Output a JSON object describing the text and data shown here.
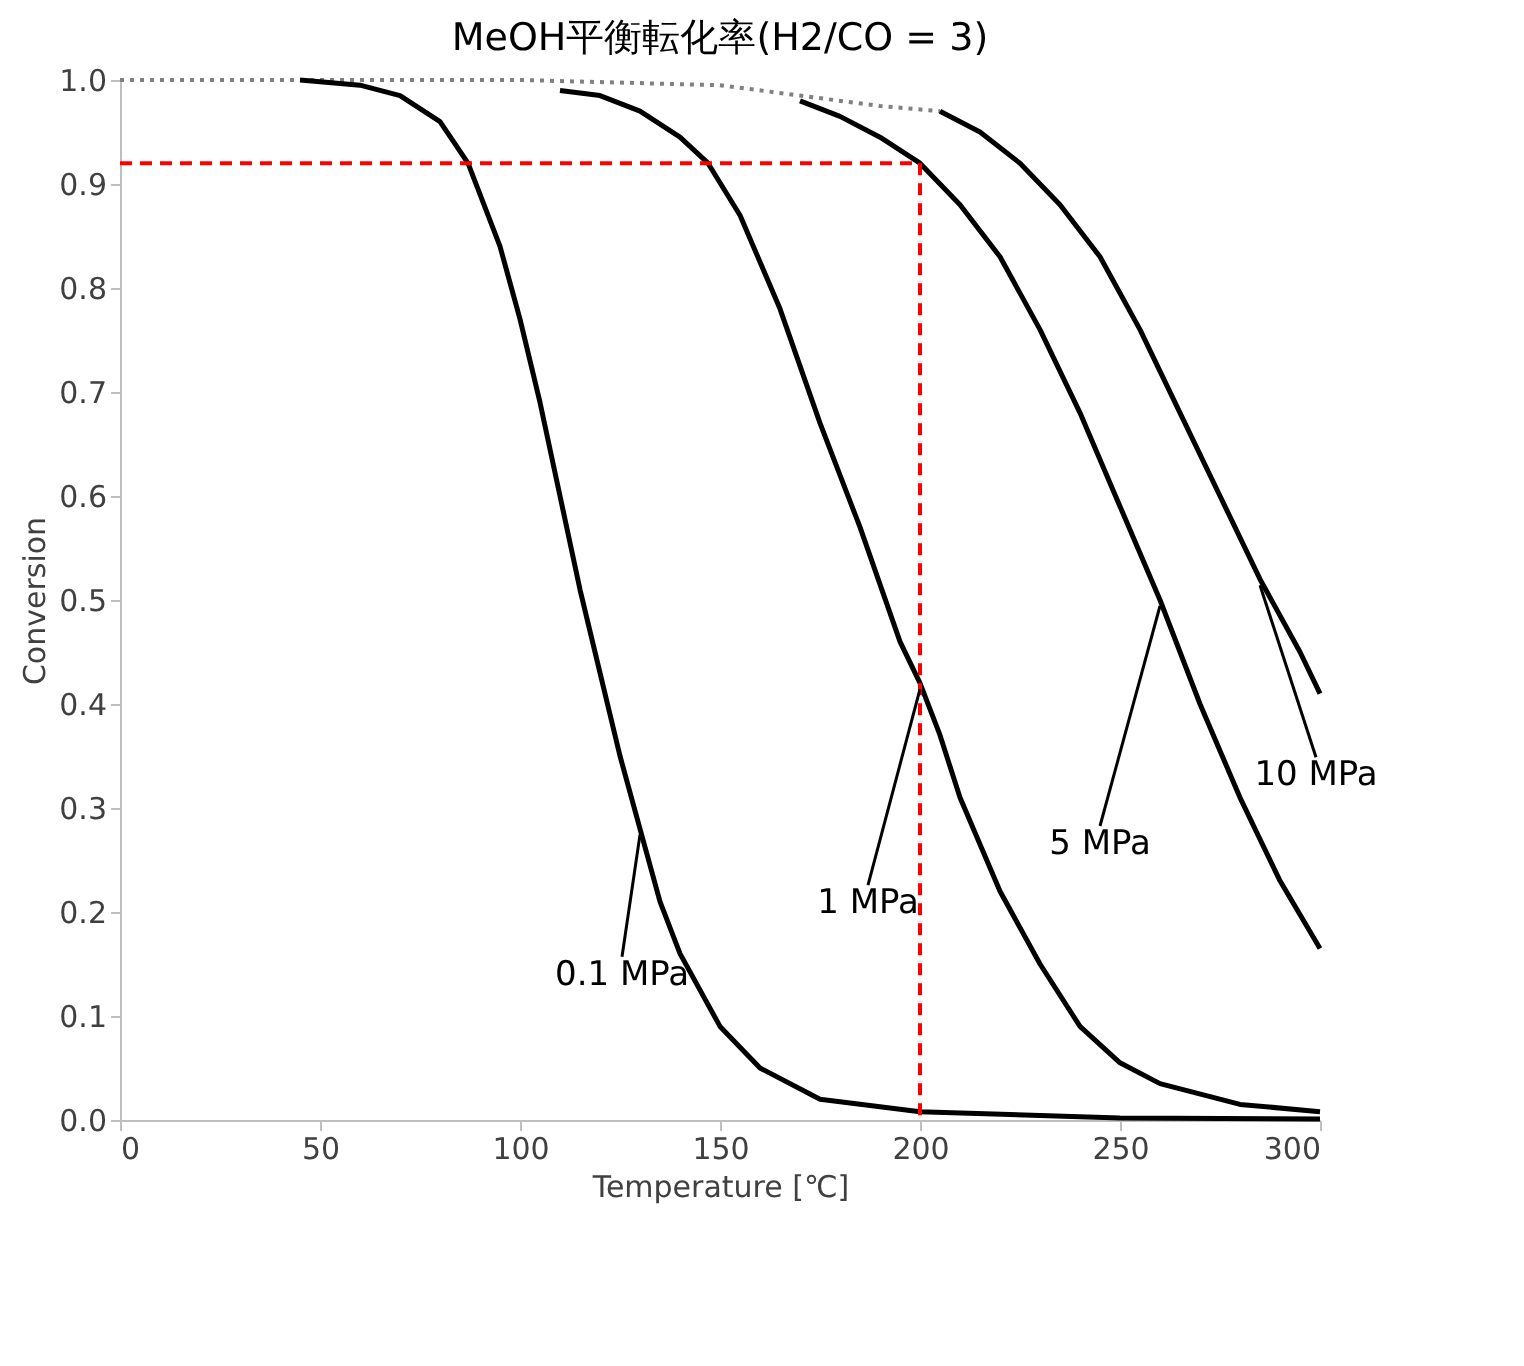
{
  "chart_data": {
    "type": "line",
    "title": "MeOH平衡転化率(H2/CO = 3)",
    "xlabel": "Temperature [℃]",
    "ylabel": "Conversion",
    "xlim": [
      0,
      300
    ],
    "xticks": [
      0,
      50,
      100,
      150,
      200,
      250,
      300
    ],
    "ylim": [
      0,
      1
    ],
    "yticks": [
      {
        "value": 0,
        "label": "0.0"
      },
      0.1,
      0.2,
      0.3,
      0.4,
      0.5,
      0.6,
      0.7,
      0.8,
      0.9,
      {
        "value": 1,
        "label": "1.0"
      }
    ],
    "grid": false,
    "marker": "none",
    "series": [
      {
        "color": "#808080",
        "line_style": "dotted",
        "x": [
          0,
          50,
          100,
          150,
          170,
          190,
          205
        ],
        "values": [
          1.0,
          1.0,
          1.0,
          0.995,
          0.985,
          0.975,
          0.97
        ]
      },
      {
        "color": "#000000",
        "line_style": "solid",
        "x": [
          45,
          60,
          70,
          80,
          87,
          95,
          100,
          105,
          110,
          115,
          120,
          125,
          130,
          135,
          140,
          150,
          160,
          175,
          200,
          250,
          300
        ],
        "values": [
          1.0,
          0.995,
          0.985,
          0.96,
          0.92,
          0.84,
          0.77,
          0.69,
          0.6,
          0.51,
          0.43,
          0.35,
          0.28,
          0.21,
          0.16,
          0.09,
          0.05,
          0.02,
          0.008,
          0.002,
          0.001
        ]
      },
      {
        "color": "#000000",
        "line_style": "solid",
        "x": [
          110,
          120,
          130,
          140,
          147,
          155,
          165,
          175,
          185,
          195,
          200,
          205,
          210,
          220,
          230,
          240,
          250,
          260,
          280,
          300
        ],
        "values": [
          0.99,
          0.985,
          0.97,
          0.945,
          0.92,
          0.87,
          0.78,
          0.67,
          0.57,
          0.46,
          0.42,
          0.37,
          0.31,
          0.22,
          0.15,
          0.09,
          0.055,
          0.035,
          0.015,
          0.008
        ]
      },
      {
        "color": "#000000",
        "line_style": "solid",
        "x": [
          170,
          180,
          190,
          200,
          210,
          220,
          230,
          240,
          250,
          260,
          270,
          280,
          290,
          300
        ],
        "values": [
          0.98,
          0.965,
          0.945,
          0.92,
          0.88,
          0.83,
          0.76,
          0.68,
          0.59,
          0.5,
          0.4,
          0.31,
          0.23,
          0.165
        ]
      },
      {
        "color": "#000000",
        "line_style": "solid",
        "x": [
          205,
          215,
          225,
          235,
          245,
          255,
          265,
          275,
          285,
          295,
          300
        ],
        "values": [
          0.97,
          0.95,
          0.92,
          0.88,
          0.83,
          0.76,
          0.68,
          0.6,
          0.52,
          0.45,
          0.41
        ]
      },
      {
        "color": "#ff0000",
        "line_style": "dashed",
        "x": [
          0,
          200,
          200
        ],
        "values": [
          0.92,
          0.92,
          0
        ]
      }
    ],
    "annotations": [
      {
        "text": "0.1 MPa",
        "x": 130,
        "y": 0.28
      },
      {
        "text": "1 MPa",
        "x": 200,
        "y": 0.42
      },
      {
        "text": "5 MPa",
        "x": 260,
        "y": 0.5
      },
      {
        "text": "10 MPa",
        "x": 285,
        "y": 0.52
      }
    ]
  }
}
